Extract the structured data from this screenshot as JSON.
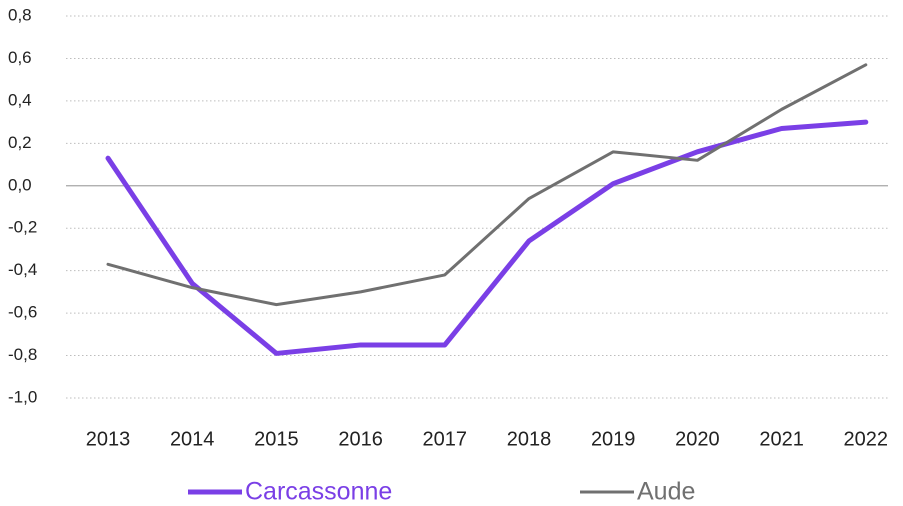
{
  "chart_data": {
    "type": "line",
    "categories": [
      "2013",
      "2014",
      "2015",
      "2016",
      "2017",
      "2018",
      "2019",
      "2020",
      "2021",
      "2022"
    ],
    "series": [
      {
        "name": "Carcassonne",
        "color": "#7a3fe6",
        "values": [
          0.13,
          -0.46,
          -0.79,
          -0.75,
          -0.75,
          -0.26,
          0.01,
          0.16,
          0.27,
          0.3
        ]
      },
      {
        "name": "Aude",
        "color": "#707070",
        "values": [
          -0.37,
          -0.48,
          -0.56,
          -0.5,
          -0.42,
          -0.06,
          0.16,
          0.12,
          0.36,
          0.57
        ]
      }
    ],
    "ylim": [
      -1.0,
      0.8
    ],
    "yticks": [
      {
        "value": -1.0,
        "label": "-1,0"
      },
      {
        "value": -0.8,
        "label": "-0,8"
      },
      {
        "value": -0.6,
        "label": "-0,6"
      },
      {
        "value": -0.4,
        "label": "-0,4"
      },
      {
        "value": -0.2,
        "label": "-0,2"
      },
      {
        "value": 0.0,
        "label": "0,0"
      },
      {
        "value": 0.2,
        "label": "0,2"
      },
      {
        "value": 0.4,
        "label": "0,4"
      },
      {
        "value": 0.6,
        "label": "0,6"
      },
      {
        "value": 0.8,
        "label": "0,8"
      }
    ],
    "grid": true,
    "legend": "bottom"
  }
}
